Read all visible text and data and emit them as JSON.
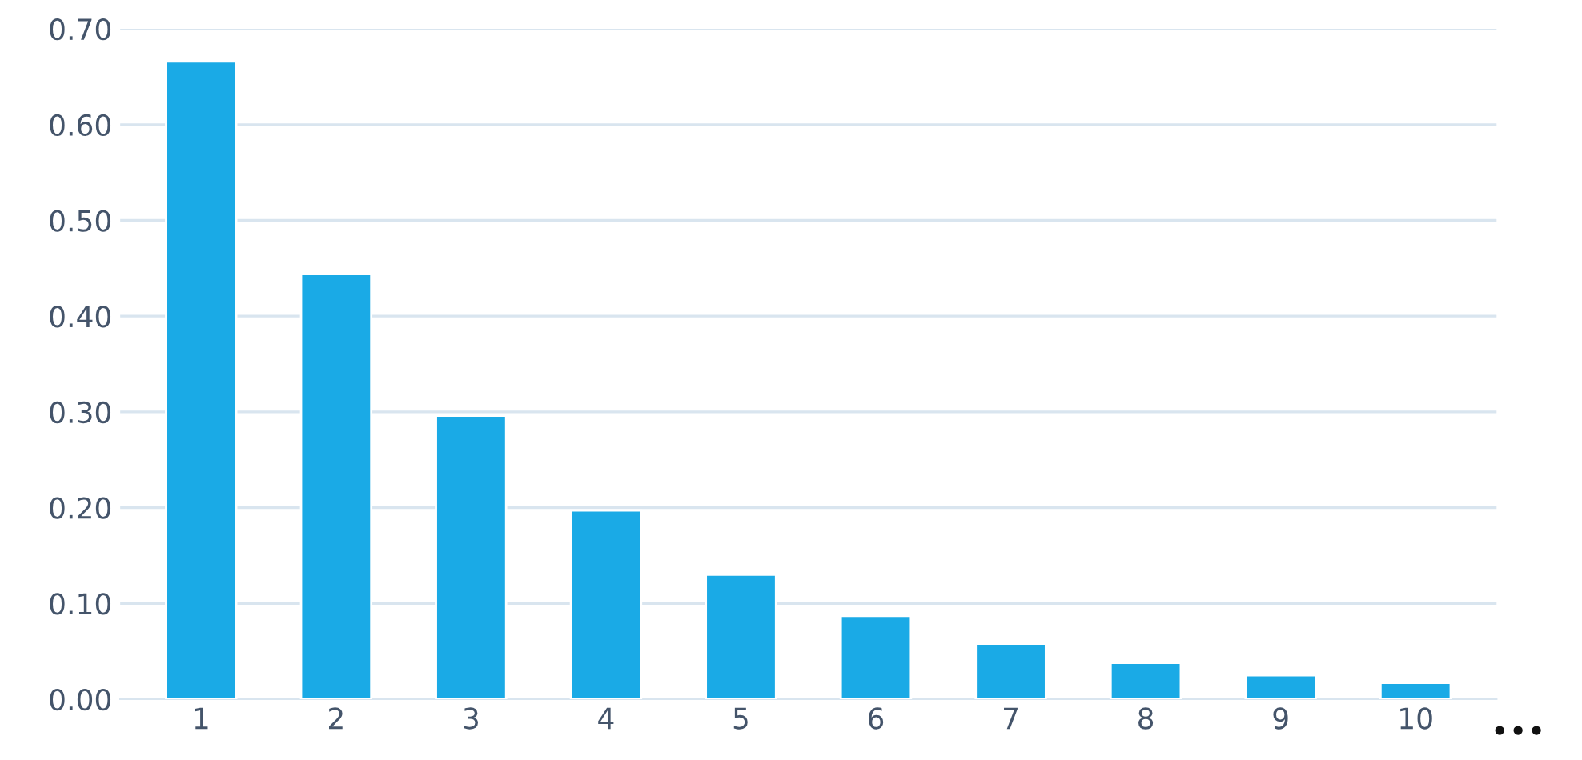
{
  "chart_data": {
    "type": "bar",
    "categories": [
      "1",
      "2",
      "3",
      "4",
      "5",
      "6",
      "7",
      "8",
      "9",
      "10"
    ],
    "values": [
      0.666,
      0.444,
      0.296,
      0.197,
      0.13,
      0.087,
      0.058,
      0.038,
      0.025,
      0.017
    ],
    "color": "#1aaae6",
    "ylim": [
      0,
      0.7
    ],
    "yticks": [
      {
        "value": 0,
        "label": "0.00"
      },
      {
        "value": 0.1,
        "label": "0.10"
      },
      {
        "value": 0.2,
        "label": "0.20"
      },
      {
        "value": 0.3,
        "label": "0.30"
      },
      {
        "value": 0.4,
        "label": "0.40"
      },
      {
        "value": 0.5,
        "label": "0.50"
      },
      {
        "value": 0.6,
        "label": "0.60"
      },
      {
        "value": 0.7,
        "label": "0.70"
      }
    ],
    "grid": "y",
    "annotations": [
      "•••"
    ]
  }
}
